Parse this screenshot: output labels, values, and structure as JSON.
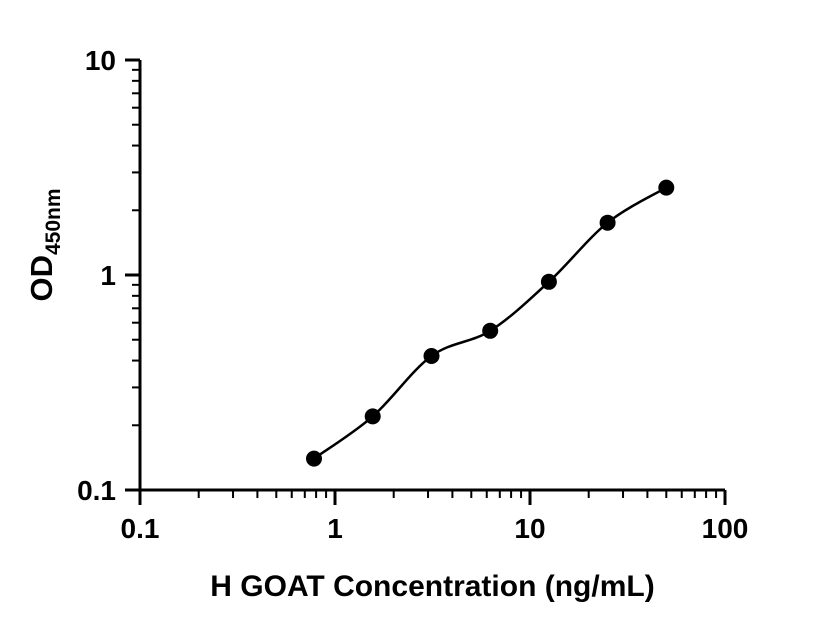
{
  "figure": {
    "background": "#ffffff",
    "ink_color": "#000000"
  },
  "chart_data": {
    "type": "scatter",
    "title": "",
    "xlabel": "H GOAT Concentration (ng/mL)",
    "ylabel_main": "OD",
    "ylabel_sub": "450nm",
    "x_scale": "log",
    "y_scale": "log",
    "xlim": [
      0.1,
      100
    ],
    "ylim": [
      0.1,
      10
    ],
    "grid": false,
    "legend": "none",
    "x_major_ticks": [
      {
        "value": 0.1,
        "label": "0.1"
      },
      {
        "value": 1,
        "label": "1"
      },
      {
        "value": 10,
        "label": "10"
      },
      {
        "value": 100,
        "label": "100"
      }
    ],
    "y_major_ticks": [
      {
        "value": 0.1,
        "label": "0.1"
      },
      {
        "value": 1,
        "label": "1"
      },
      {
        "value": 10,
        "label": "10"
      }
    ],
    "x_minor_ticks": [
      0.2,
      0.3,
      0.4,
      0.5,
      0.6,
      0.7,
      0.8,
      0.9,
      2,
      3,
      4,
      5,
      6,
      7,
      8,
      9,
      20,
      30,
      40,
      50,
      60,
      70,
      80,
      90
    ],
    "y_minor_ticks": [
      0.2,
      0.3,
      0.4,
      0.5,
      0.6,
      0.7,
      0.8,
      0.9,
      2,
      3,
      4,
      5,
      6,
      7,
      8,
      9
    ],
    "marker": "filled-circle",
    "marker_color": "#000000",
    "line_color": "#000000",
    "fit": "smooth curve through points",
    "points": [
      {
        "x": 0.78,
        "y": 0.14
      },
      {
        "x": 1.56,
        "y": 0.22
      },
      {
        "x": 3.125,
        "y": 0.42
      },
      {
        "x": 6.25,
        "y": 0.55
      },
      {
        "x": 12.5,
        "y": 0.93
      },
      {
        "x": 25,
        "y": 1.75
      },
      {
        "x": 50,
        "y": 2.55
      }
    ]
  }
}
